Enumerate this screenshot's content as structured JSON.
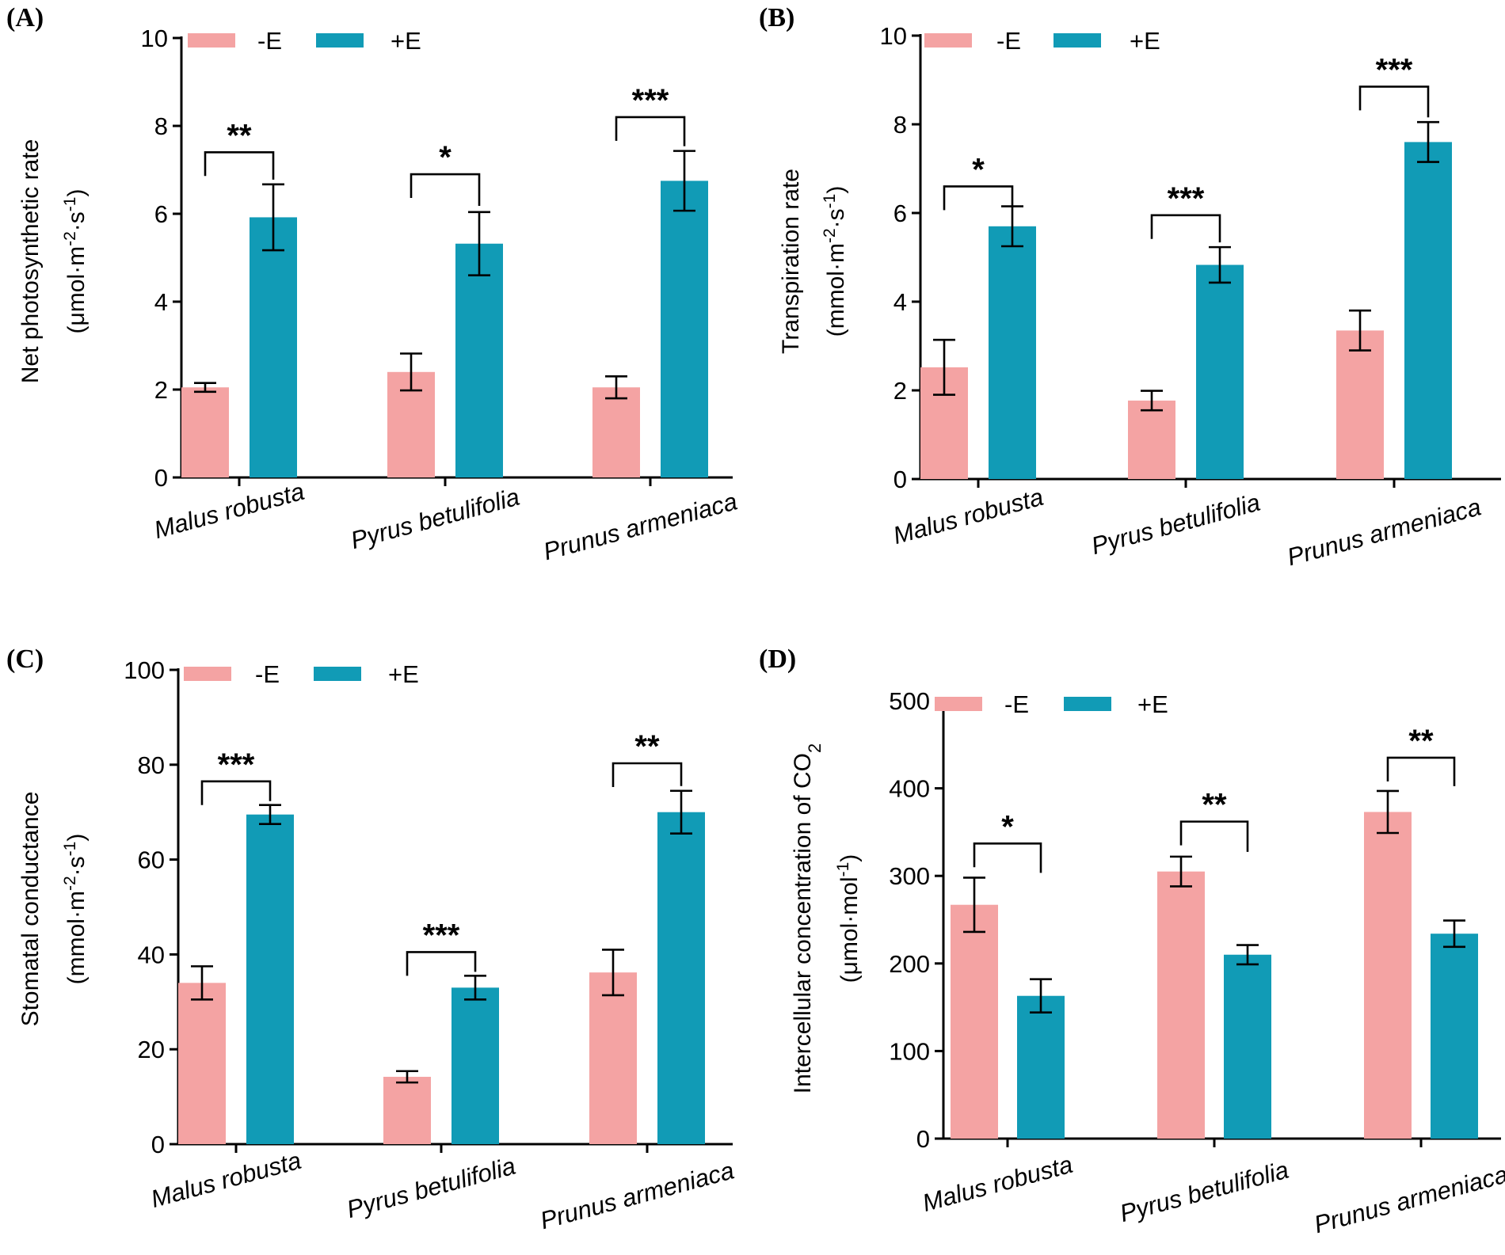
{
  "colors": {
    "minus_e": "#F4A3A3",
    "plus_e": "#119BB6",
    "ink": "#000000"
  },
  "chart_data": [
    {
      "type": "bar",
      "panel_label": "(A)",
      "categories": [
        "Malus robusta",
        "Pyrus betulifolia",
        "Prunus armeniaca"
      ],
      "series": [
        {
          "name": "-E",
          "values": [
            2.05,
            2.4,
            2.05
          ],
          "errors": [
            0.1,
            0.42,
            0.25
          ]
        },
        {
          "name": "+E",
          "values": [
            5.92,
            5.32,
            6.75
          ],
          "errors": [
            0.75,
            0.72,
            0.68
          ]
        }
      ],
      "significance": [
        "**",
        "*",
        "***"
      ],
      "sig_y": [
        7.4,
        6.9,
        8.2
      ],
      "ylabel": {
        "line1": "Net photosynthetic rate",
        "line2_pre": "(μmol·m",
        "sup1": "-2",
        "mid": "·s",
        "sup2": "-1",
        "post": ")"
      },
      "ylim": [
        0,
        10
      ],
      "yticks": [
        "0",
        "2",
        "4",
        "6",
        "8",
        "10"
      ],
      "grid": false,
      "legend": "top-left"
    },
    {
      "type": "bar",
      "panel_label": "(B)",
      "categories": [
        "Malus robusta",
        "Pyrus betulifolia",
        "Prunus armeniaca"
      ],
      "series": [
        {
          "name": "-E",
          "values": [
            2.52,
            1.77,
            3.35
          ],
          "errors": [
            0.62,
            0.22,
            0.45
          ]
        },
        {
          "name": "+E",
          "values": [
            5.7,
            4.83,
            7.6
          ],
          "errors": [
            0.45,
            0.4,
            0.45
          ]
        }
      ],
      "significance": [
        "*",
        "***",
        "***"
      ],
      "sig_y": [
        6.6,
        5.95,
        8.85
      ],
      "ylabel": {
        "line1": "Transpiration rate",
        "line2_pre": "(mmol·m",
        "sup1": "-2",
        "mid": "·s",
        "sup2": "-1",
        "post": ")"
      },
      "ylim": [
        0,
        10
      ],
      "yticks": [
        "0",
        "2",
        "4",
        "6",
        "8",
        "10"
      ],
      "grid": false,
      "legend": "top-left"
    },
    {
      "type": "bar",
      "panel_label": "(C)",
      "categories": [
        "Malus robusta",
        "Pyrus betulifolia",
        "Prunus armeniaca"
      ],
      "series": [
        {
          "name": "-E",
          "values": [
            34,
            14.2,
            36.2
          ],
          "errors": [
            3.5,
            1.2,
            4.8
          ]
        },
        {
          "name": "+E",
          "values": [
            69.5,
            33,
            70
          ],
          "errors": [
            2,
            2.5,
            4.5
          ]
        }
      ],
      "significance": [
        "***",
        "***",
        "**"
      ],
      "sig_y": [
        76.5,
        40.5,
        80.3
      ],
      "ylabel": {
        "line1": "Stomatal conductance",
        "line2_pre": "(mmol·m",
        "sup1": "-2",
        "mid": "·s",
        "sup2": "-1",
        "post": ")"
      },
      "ylim": [
        0,
        100
      ],
      "yticks": [
        "0",
        "20",
        "40",
        "60",
        "80",
        "100"
      ],
      "grid": false,
      "legend": "top-left"
    },
    {
      "type": "bar",
      "panel_label": "(D)",
      "categories": [
        "Malus robusta",
        "Pyrus betulifolia",
        "Prunus armeniaca"
      ],
      "series": [
        {
          "name": "-E",
          "values": [
            267,
            305,
            373
          ],
          "errors": [
            31,
            17,
            24
          ]
        },
        {
          "name": "+E",
          "values": [
            163,
            210,
            234
          ],
          "errors": [
            19,
            11,
            15
          ]
        }
      ],
      "significance": [
        "*",
        "**",
        "**"
      ],
      "sig_y": [
        337,
        362,
        435
      ],
      "ylabel": {
        "line1_pre": "Intercellular concentration of CO",
        "line1_sub": "2",
        "line2_pre": "(μmol·mol",
        "sup": "-1",
        "post": ")"
      },
      "ylim": [
        0,
        500
      ],
      "yticks": [
        "0",
        "100",
        "200",
        "300",
        "400",
        "500"
      ],
      "grid": false,
      "legend": "top-left"
    }
  ]
}
